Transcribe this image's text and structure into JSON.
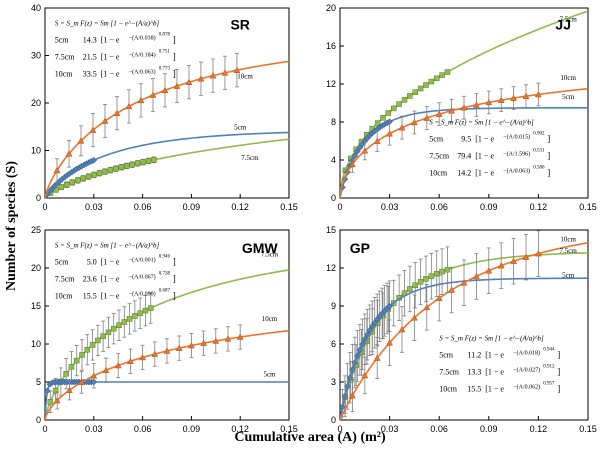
{
  "figure": {
    "ylabel": "Number of species (S)",
    "xlabel": "Cumulative area (A) (m²)"
  },
  "colors": {
    "5cm": "#4f81bd",
    "7.5cm": "#8fbc4a",
    "10cm": "#e8762c",
    "error_bar": "#7f7f7f"
  },
  "chart_data": [
    {
      "type": "scatter",
      "title": "SR",
      "xlim": [
        0,
        0.15
      ],
      "ylim": [
        0,
        40
      ],
      "xticks": [
        "0",
        "0.03",
        "0.06",
        "0.09",
        "0.12",
        "0.15"
      ],
      "yticks": [
        "0",
        "10",
        "20",
        "30",
        "40"
      ],
      "equation": "S = S_m F(z) = Sm [1 − e^−(A/a)^b]",
      "series": [
        {
          "name": "5cm",
          "Sm": 14.3,
          "a": 0.038,
          "b": 0.878,
          "Sm_label": "14.3",
          "a_label": "0.038",
          "b_label": "0.878",
          "xmax_data": 0.03,
          "n": 20,
          "err": 0.0
        },
        {
          "name": "7.5cm",
          "Sm": 21.5,
          "a": 0.184,
          "b": 0.751,
          "Sm_label": "21.5",
          "a_label": "0.184",
          "b_label": "0.751",
          "xmax_data": 0.067,
          "n": 20,
          "err": 0.6
        },
        {
          "name": "10cm",
          "Sm": 33.5,
          "a": 0.063,
          "b": 0.773,
          "Sm_label": "33.5",
          "a_label": "0.063",
          "b_label": "0.773",
          "xmax_data": 0.118,
          "n": 16,
          "err": 3.5
        }
      ],
      "curve_labels": [
        "5cm",
        "7.5cm",
        "10cm"
      ]
    },
    {
      "type": "scatter",
      "title": "JJ",
      "xlim": [
        0,
        0.15
      ],
      "ylim": [
        0,
        20
      ],
      "xticks": [
        "0",
        "0.03",
        "0.06",
        "0.09",
        "0.12",
        "0.15"
      ],
      "yticks": [
        "0",
        "4",
        "8",
        "12",
        "16",
        "20"
      ],
      "equation": "S = S_m F(z) = Sm [1 − e^−(A/a)^b]",
      "series": [
        {
          "name": "5cm",
          "Sm": 9.5,
          "a": 0.015,
          "b": 0.902,
          "Sm_label": "9.5",
          "a_label": "0.015",
          "b_label": "0.902",
          "xmax_data": 0.03,
          "n": 20,
          "err": 0.0
        },
        {
          "name": "7.5cm",
          "Sm": 79.4,
          "a": 1.596,
          "b": 0.531,
          "Sm_label": "79.4",
          "a_label": "1.596",
          "b_label": "0.531",
          "xmax_data": 0.065,
          "n": 20,
          "err": 0.0
        },
        {
          "name": "10cm",
          "Sm": 14.2,
          "a": 0.063,
          "b": 0.586,
          "Sm_label": "14.2",
          "a_label": "0.063",
          "b_label": "0.586",
          "xmax_data": 0.12,
          "n": 16,
          "err": 1.2
        }
      ],
      "curve_labels": [
        "5cm",
        "7.5cm",
        "10cm"
      ]
    },
    {
      "type": "scatter",
      "title": "GMW",
      "xlim": [
        0,
        0.15
      ],
      "ylim": [
        0,
        25
      ],
      "xticks": [
        "0",
        "0.03",
        "0.06",
        "0.09",
        "0.12",
        "0.15"
      ],
      "yticks": [
        "0",
        "5",
        "10",
        "15",
        "20",
        "25"
      ],
      "equation": "S = S_m F(z) = Sm [1 − e^−(A/a)^b]",
      "series": [
        {
          "name": "5cm",
          "Sm": 5.0,
          "a": 0.001,
          "b": 0.946,
          "Sm_label": "5.0",
          "a_label": "0.001",
          "b_label": "0.946",
          "xmax_data": 0.03,
          "n": 20,
          "err": 0.0
        },
        {
          "name": "7.5cm",
          "Sm": 23.6,
          "a": 0.067,
          "b": 0.738,
          "Sm_label": "23.6",
          "a_label": "0.067",
          "b_label": "0.738",
          "xmax_data": 0.065,
          "n": 20,
          "err": 2.0
        },
        {
          "name": "10cm",
          "Sm": 15.5,
          "a": 0.09,
          "b": 0.687,
          "Sm_label": "15.5",
          "a_label": "0.090",
          "b_label": "0.687",
          "xmax_data": 0.12,
          "n": 16,
          "err": 1.6
        }
      ],
      "curve_labels": [
        "5cm",
        "7.5cm",
        "10cm"
      ]
    },
    {
      "type": "scatter",
      "title": "GP",
      "xlim": [
        0,
        0.15
      ],
      "ylim": [
        0,
        15
      ],
      "xticks": [
        "0",
        "0.03",
        "0.06",
        "0.09",
        "0.12",
        "0.15"
      ],
      "yticks": [
        "0",
        "3",
        "6",
        "9",
        "12",
        "15"
      ],
      "equation": "S = S_m F(z) = Sm [1 − e^−(A/a)^b]",
      "series": [
        {
          "name": "5cm",
          "Sm": 11.2,
          "a": 0.018,
          "b": 0.944,
          "Sm_label": "11.2",
          "a_label": "0.018",
          "b_label": "0.944",
          "xmax_data": 0.03,
          "n": 20,
          "err": 2.0
        },
        {
          "name": "7.5cm",
          "Sm": 13.3,
          "a": 0.027,
          "b": 0.912,
          "Sm_label": "13.3",
          "a_label": "0.027",
          "b_label": "0.912",
          "xmax_data": 0.065,
          "n": 20,
          "err": 1.8
        },
        {
          "name": "10cm",
          "Sm": 15.5,
          "a": 0.062,
          "b": 0.957,
          "Sm_label": "15.5",
          "a_label": "0.062",
          "b_label": "0.957",
          "xmax_data": 0.12,
          "n": 16,
          "err": 1.8
        }
      ],
      "curve_labels": [
        "5cm",
        "7.5cm",
        "10cm"
      ]
    }
  ]
}
